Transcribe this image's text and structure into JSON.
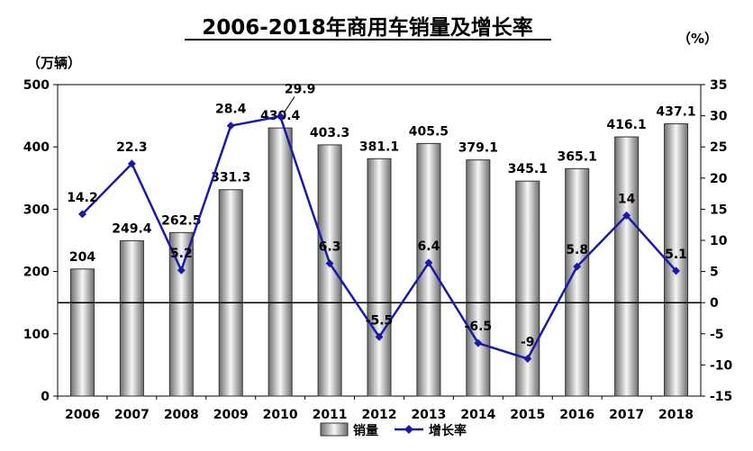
{
  "chart_data": {
    "type": "bar",
    "title": "2006-2018年商用车销量及增长率",
    "ylabel_left": "（万辆）",
    "ylabel_right": "（%）",
    "categories": [
      "2006",
      "2007",
      "2008",
      "2009",
      "2010",
      "2011",
      "2012",
      "2013",
      "2014",
      "2015",
      "2016",
      "2017",
      "2018"
    ],
    "series": [
      {
        "name": "销量",
        "type": "bar",
        "axis": "left",
        "values": [
          204,
          249.4,
          262.5,
          331.3,
          430.4,
          403.3,
          381.1,
          405.5,
          379.1,
          345.1,
          365.1,
          416.1,
          437.1
        ],
        "labels": [
          "204",
          "249.4",
          "262.5",
          "331.3",
          "430.4",
          "403.3",
          "381.1",
          "405.5",
          "379.1",
          "345.1",
          "365.1",
          "416.1",
          "437.1"
        ]
      },
      {
        "name": "增长率",
        "type": "line",
        "axis": "right",
        "values": [
          14.2,
          22.3,
          5.2,
          28.4,
          29.9,
          6.3,
          -5.5,
          6.4,
          -6.5,
          -9,
          5.8,
          14,
          5.1
        ],
        "labels": [
          "14.2",
          "22.3",
          "5.2",
          "28.4",
          "29.9",
          "6.3",
          "-5.5",
          "6.4",
          "-6.5",
          "-9",
          "5.8",
          "14",
          "5.1"
        ]
      }
    ],
    "y_left": {
      "min": 0,
      "max": 500,
      "ticks": [
        "0",
        "100",
        "200",
        "300",
        "400",
        "500"
      ]
    },
    "y_right": {
      "min": -15,
      "max": 35,
      "ticks": [
        "-15",
        "-10",
        "-5",
        "0",
        "5",
        "10",
        "15",
        "20",
        "25",
        "30",
        "35"
      ]
    },
    "grid": false,
    "legend_position": "bottom",
    "colors": {
      "bar_edge": "#333333",
      "bar_dark": "#6e6e6e",
      "bar_light": "#f7f7f7",
      "line": "#1a1aa8",
      "axis": "#000000",
      "text": "#000000"
    }
  }
}
